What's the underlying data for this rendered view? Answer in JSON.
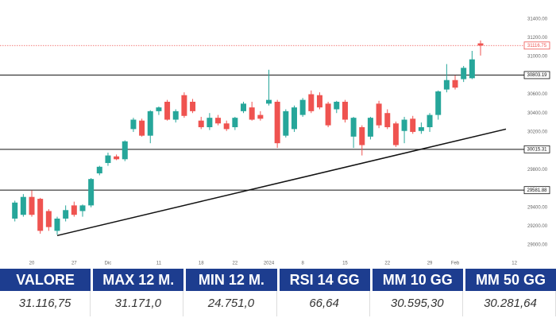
{
  "chart_data": {
    "type": "candlestick",
    "categories": [
      null,
      null,
      "20",
      null,
      null,
      null,
      null,
      "27",
      null,
      null,
      null,
      "Dic",
      null,
      null,
      null,
      null,
      null,
      "11",
      null,
      null,
      null,
      null,
      "18",
      null,
      null,
      null,
      "22",
      null,
      null,
      null,
      "2024",
      null,
      null,
      null,
      "8",
      null,
      null,
      null,
      null,
      "15",
      null,
      null,
      null,
      null,
      "22",
      null,
      null,
      null,
      null,
      "29",
      null,
      null,
      "Feb",
      null,
      null,
      null,
      null,
      null,
      null,
      "12"
    ],
    "open": [
      29280,
      29320,
      29510,
      29490,
      29360,
      29150,
      29280,
      29420,
      29360,
      29420,
      29760,
      29870,
      29940,
      29910,
      30230,
      30320,
      30160,
      30420,
      30520,
      30330,
      30590,
      30520,
      30320,
      30250,
      30350,
      30290,
      30250,
      30420,
      30460,
      30380,
      30500,
      30520,
      30160,
      30230,
      30380,
      30600,
      30590,
      30500,
      30440,
      30520,
      30150,
      30250,
      30150,
      30500,
      30400,
      30290,
      30210,
      30340,
      30210,
      30250,
      30380,
      30650,
      30750,
      30760,
      30770,
      31140,
      null,
      null,
      null,
      null
    ],
    "high": [
      29470,
      29540,
      29580,
      29500,
      29380,
      29300,
      29420,
      29460,
      29430,
      29710,
      29840,
      29980,
      29960,
      30110,
      30350,
      30340,
      30430,
      30470,
      30540,
      30440,
      30620,
      30550,
      30360,
      30400,
      30380,
      30320,
      30360,
      30520,
      30520,
      30420,
      30860,
      30540,
      30440,
      30480,
      30560,
      30640,
      30620,
      30520,
      30530,
      30540,
      30360,
      30270,
      30360,
      30530,
      30440,
      30310,
      30360,
      30370,
      30300,
      30400,
      30640,
      30920,
      30800,
      30900,
      31060,
      31171,
      null,
      null,
      null,
      null
    ],
    "low": [
      29250,
      29300,
      29300,
      29120,
      29150,
      29110,
      29250,
      29300,
      29300,
      29400,
      29740,
      29840,
      29900,
      29890,
      30200,
      30150,
      30080,
      30380,
      30320,
      30300,
      30350,
      30400,
      30230,
      30220,
      30270,
      30210,
      30220,
      30400,
      30320,
      30320,
      30480,
      30030,
      30140,
      30200,
      30360,
      30400,
      30440,
      30250,
      30400,
      30300,
      30030,
      29950,
      30120,
      30240,
      30230,
      30040,
      30080,
      30180,
      30180,
      30200,
      30330,
      30620,
      30650,
      30730,
      30760,
      31010,
      null,
      null,
      null,
      null
    ],
    "close": [
      29450,
      29510,
      29320,
      29150,
      29190,
      29280,
      29370,
      29320,
      29420,
      29700,
      29830,
      29950,
      29910,
      30100,
      30330,
      30160,
      30420,
      30460,
      30330,
      30420,
      30370,
      30420,
      30250,
      30350,
      30290,
      30230,
      30350,
      30500,
      30330,
      30340,
      30540,
      30080,
      30420,
      30460,
      30540,
      30420,
      30460,
      30270,
      30520,
      30330,
      30350,
      30060,
      30350,
      30270,
      30250,
      30060,
      30330,
      30200,
      30250,
      30380,
      30630,
      30750,
      30670,
      30880,
      30970,
      31116.75,
      null,
      null,
      null,
      null
    ],
    "up_color": "#26a69a",
    "down_color": "#ef5350",
    "ylim": [
      28900,
      31600
    ],
    "yticks": [
      {
        "value": 29000,
        "label": "29000.00"
      },
      {
        "value": 29200,
        "label": "29200.00"
      },
      {
        "value": 29400,
        "label": "29400.00"
      },
      {
        "value": 29800,
        "label": "29800.00"
      },
      {
        "value": 30200,
        "label": "30200.00"
      },
      {
        "value": 30400,
        "label": "30400.00"
      },
      {
        "value": 30600,
        "label": "30600.00"
      },
      {
        "value": 31000,
        "label": "31000.00"
      },
      {
        "value": 31200,
        "label": "31200.00"
      },
      {
        "value": 31400,
        "label": "31400.00"
      }
    ],
    "levels": [
      30803.19,
      30015.31,
      29581.88
    ],
    "last_price": 31116.75,
    "trendline": {
      "start": [
        5,
        29100
      ],
      "end": [
        58,
        30230
      ]
    },
    "grid": false
  },
  "table": {
    "header": [
      "VALORE",
      "MAX 12 M.",
      "MIN 12 M.",
      "RSI 14 GG",
      "MM 10 GG",
      "MM 50 GG"
    ],
    "rows": [
      [
        "31.116,75",
        "31.171,0",
        "24.751,0",
        "66,64",
        "30.595,30",
        "30.281,64"
      ]
    ]
  }
}
